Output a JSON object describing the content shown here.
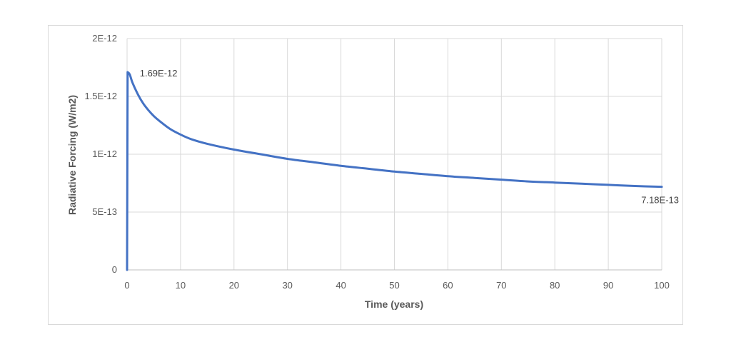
{
  "chart_data": {
    "type": "line",
    "title": "",
    "xlabel": "Time (years)",
    "ylabel": "Radiative Forcing (W/m2)",
    "xlim": [
      0,
      100
    ],
    "ylim": [
      0,
      2e-12
    ],
    "x_ticks": [
      0,
      10,
      20,
      30,
      40,
      50,
      60,
      70,
      80,
      90,
      100
    ],
    "x_tick_labels": [
      "0",
      "10",
      "20",
      "30",
      "40",
      "50",
      "60",
      "70",
      "80",
      "90",
      "100"
    ],
    "y_ticks": [
      0,
      5e-13,
      1e-12,
      1.5e-12,
      2e-12
    ],
    "y_tick_labels": [
      "0",
      "5E-13",
      "1E-12",
      "1.5E-12",
      "2E-12"
    ],
    "grid": true,
    "legend": "none",
    "series": [
      {
        "color": "#4472c4",
        "x": [
          0,
          0.1,
          0.5,
          1,
          2,
          3,
          4,
          5,
          6,
          8,
          10,
          12,
          15,
          20,
          25,
          30,
          35,
          40,
          45,
          50,
          55,
          60,
          65,
          70,
          75,
          80,
          85,
          90,
          95,
          100
        ],
        "y": [
          0,
          1.71e-12,
          1.69e-12,
          1.62e-12,
          1.52e-12,
          1.44e-12,
          1.38e-12,
          1.33e-12,
          1.29e-12,
          1.22e-12,
          1.17e-12,
          1.13e-12,
          1.09e-12,
          1.04e-12,
          1e-12,
          9.6e-13,
          9.3e-13,
          9e-13,
          8.75e-13,
          8.5e-13,
          8.3e-13,
          8.1e-13,
          7.95e-13,
          7.8e-13,
          7.65e-13,
          7.55e-13,
          7.45e-13,
          7.35e-13,
          7.25e-13,
          7.18e-13
        ]
      }
    ],
    "annotations": [
      {
        "text": "1.69E-12",
        "x": 0.5,
        "y": 1.69e-12
      },
      {
        "text": "7.18E-13",
        "x": 100,
        "y": 7.18e-13
      }
    ]
  }
}
